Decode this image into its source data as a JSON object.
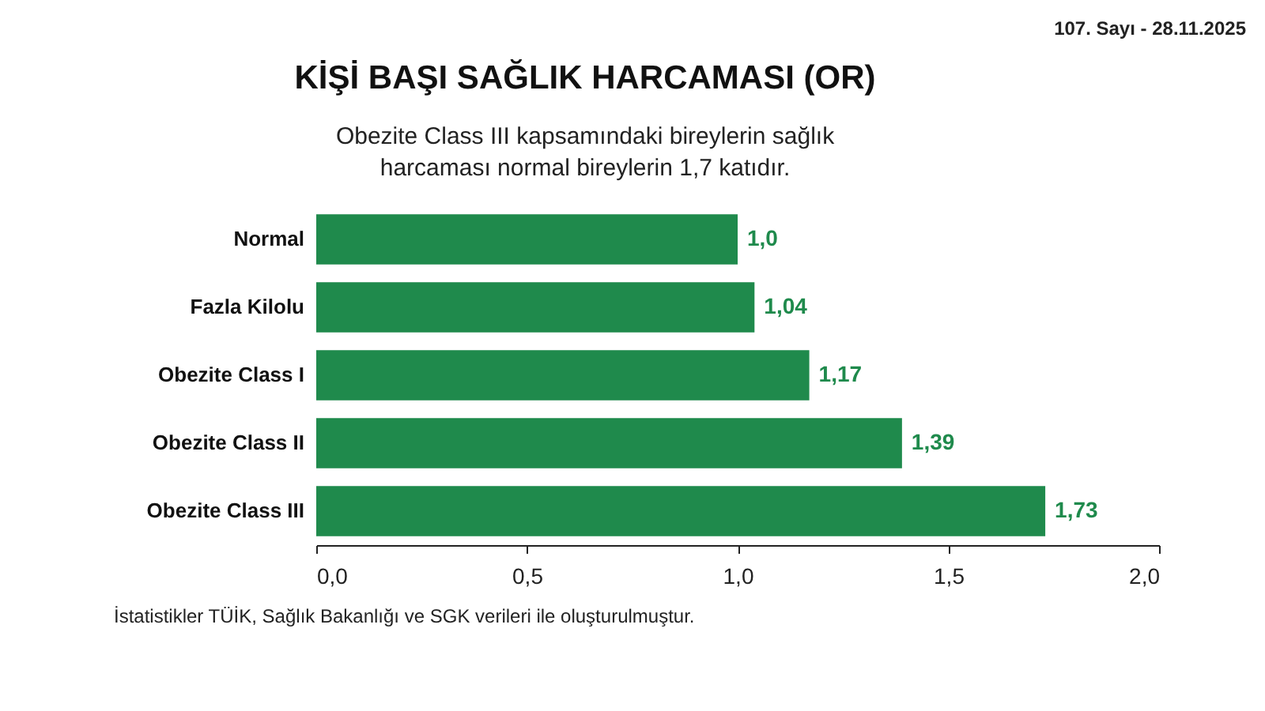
{
  "chart_data": {
    "type": "bar",
    "orientation": "horizontal",
    "title": "KİŞİ BAŞI SAĞLIK HARCAMASI (OR)",
    "subtitle": "Obezite Class III kapsamındaki bireylerin sağlık harcaması normal bireylerin 1,7 katıdır.",
    "categories": [
      "Normal",
      "Fazla Kilolu",
      "Obezite Class I",
      "Obezite Class II",
      "Obezite Class III"
    ],
    "values": [
      1.0,
      1.04,
      1.17,
      1.39,
      1.73
    ],
    "value_labels": [
      "1,0",
      "1,04",
      "1,17",
      "1,39",
      "1,73"
    ],
    "color": "#1f8a4c",
    "xlim": [
      0,
      2
    ],
    "xticks": [
      {
        "value": 0,
        "label": "0,0"
      },
      {
        "value": 0.5,
        "label": "0,5"
      },
      {
        "value": 1,
        "label": "1,0"
      },
      {
        "value": 1.5,
        "label": "1,5"
      },
      {
        "value": 2,
        "label": "2,0"
      }
    ],
    "grid": false,
    "annotations": [
      "107. Sayı - 28.11.2025",
      "İstatistikler TÜİK, Sağlık Bakanlığı ve SGK verileri ile oluşturulmuştur."
    ]
  }
}
